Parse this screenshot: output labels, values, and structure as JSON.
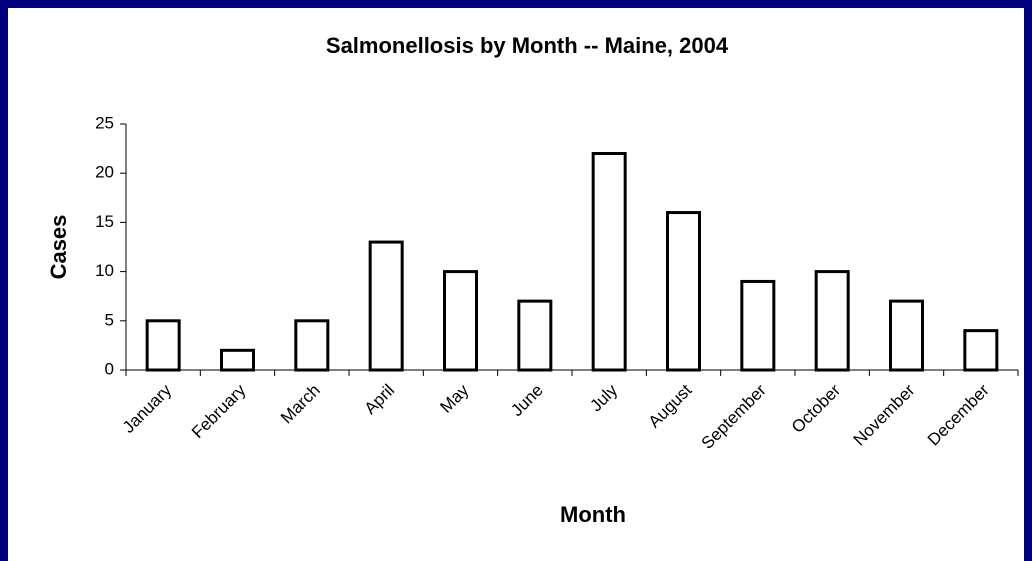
{
  "chart_data": {
    "type": "bar",
    "title": "Salmonellosis by Month -- Maine, 2004",
    "x_label": "Month",
    "y_label": "Cases",
    "categories": [
      "January",
      "February",
      "March",
      "April",
      "May",
      "June",
      "July",
      "August",
      "September",
      "October",
      "November",
      "December"
    ],
    "values": [
      5,
      2,
      5,
      13,
      10,
      7,
      22,
      16,
      9,
      10,
      7,
      4
    ],
    "color": "#ffffff",
    "ylim": [
      0,
      25
    ],
    "yticks": [
      0,
      5,
      10,
      15,
      20,
      25
    ],
    "grid": false
  }
}
